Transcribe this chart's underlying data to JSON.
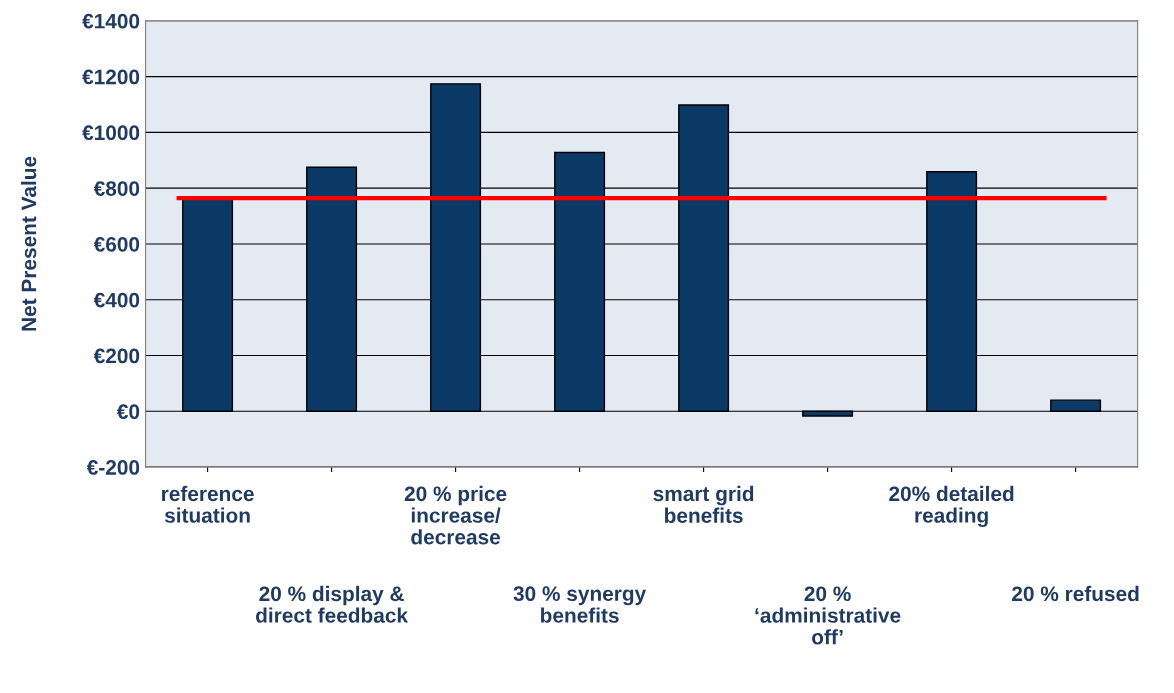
{
  "chart_data": {
    "type": "bar",
    "ylabel": "Net Present Value",
    "categories": [
      "reference\nsituation",
      "20 % display &\ndirect feedback",
      "20 % price\nincrease/\ndecrease",
      "30 % synergy\nbenefits",
      "smart grid\nbenefits",
      "20 %\n‘administrative\noff’",
      "20% detailed\nreading",
      "20 % refused"
    ],
    "values": [
      769,
      875,
      1174,
      928,
      1098,
      -17,
      859,
      40
    ],
    "color": "#0b3a66",
    "ylim": [
      -200,
      1400
    ],
    "yticks": [
      {
        "value": -200,
        "label": "€-200"
      },
      {
        "value": 0,
        "label": "€0"
      },
      {
        "value": 200,
        "label": "€200"
      },
      {
        "value": 400,
        "label": "€400"
      },
      {
        "value": 600,
        "label": "€600"
      },
      {
        "value": 800,
        "label": "€800"
      },
      {
        "value": 1000,
        "label": "€1000"
      },
      {
        "value": 1200,
        "label": "€1200"
      },
      {
        "value": 1400,
        "label": "€1400"
      }
    ],
    "grid": "y",
    "legend": false,
    "ref_lines": [
      {
        "axis": "y",
        "value": 764,
        "color": "#ff0000"
      }
    ]
  }
}
